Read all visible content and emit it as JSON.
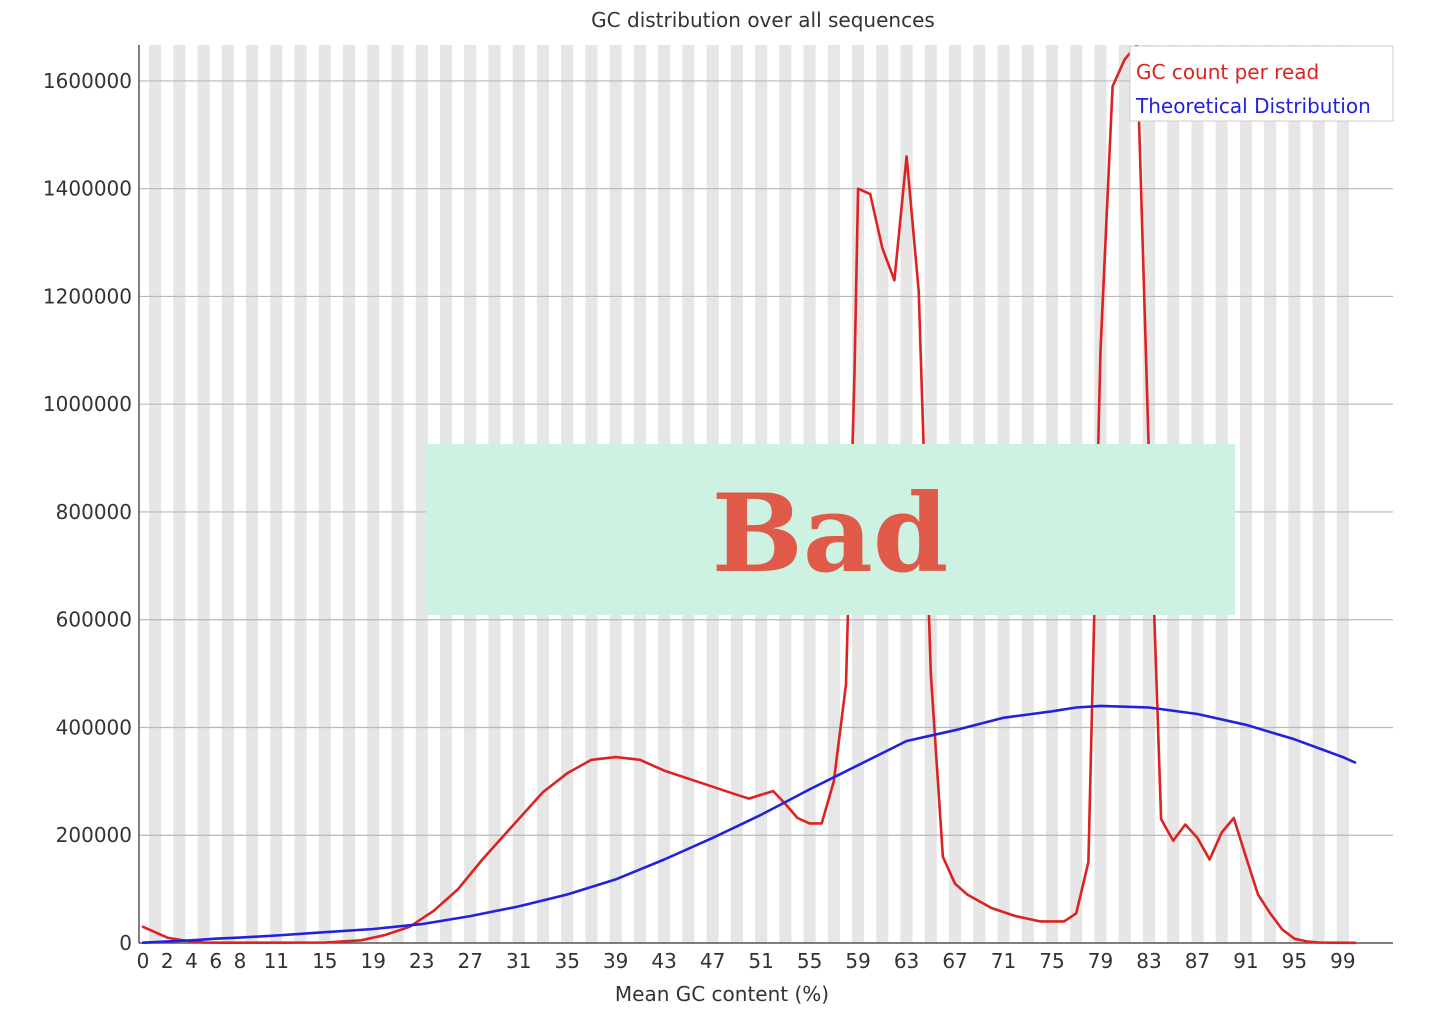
{
  "chart_data": {
    "type": "line",
    "title": "GC distribution over all sequences",
    "xlabel": "Mean GC content (%)",
    "ylabel": "",
    "xlim": [
      0,
      100
    ],
    "ylim": [
      0,
      1666667
    ],
    "yticks": [
      0,
      200000,
      400000,
      600000,
      800000,
      1000000,
      1200000,
      1400000,
      1600000
    ],
    "ytick_labels": [
      "0",
      "200000",
      "400000",
      "600000",
      "800000",
      "1000000",
      "1200000",
      "1400000",
      "1600000"
    ],
    "xticks": [
      0,
      2,
      4,
      6,
      8,
      11,
      15,
      19,
      23,
      27,
      31,
      35,
      39,
      43,
      47,
      51,
      55,
      59,
      63,
      67,
      71,
      75,
      79,
      83,
      87,
      91,
      95,
      99
    ],
    "xtick_labels": [
      "0",
      "2",
      "4",
      "6",
      "8",
      "11",
      "15",
      "19",
      "23",
      "27",
      "31",
      "35",
      "39",
      "43",
      "47",
      "51",
      "55",
      "59",
      "63",
      "67",
      "71",
      "75",
      "79",
      "83",
      "87",
      "91",
      "95",
      "99"
    ],
    "grid": true,
    "legend_position": "top-right",
    "series": [
      {
        "name": "GC count per read",
        "color": "#dd2222",
        "x": [
          0,
          1,
          2,
          3,
          4,
          5,
          7,
          10,
          15,
          18,
          20,
          22,
          24,
          26,
          28,
          30,
          32,
          33,
          35,
          37,
          39,
          41,
          43,
          45,
          47,
          49,
          50,
          51,
          52,
          53,
          54,
          55,
          56,
          57,
          58,
          58.7,
          59,
          60,
          61,
          62,
          63,
          64,
          65,
          66,
          67,
          68,
          70,
          72,
          74,
          76,
          77,
          78,
          79,
          80,
          81,
          82,
          83,
          84,
          84.5,
          85,
          86,
          87,
          88,
          89,
          90,
          91,
          92,
          93,
          94,
          95,
          96,
          97,
          98,
          100
        ],
        "y": [
          30000,
          20000,
          10000,
          6000,
          3000,
          1000,
          500,
          500,
          1000,
          5000,
          15000,
          30000,
          60000,
          100000,
          155000,
          205000,
          255000,
          280000,
          315000,
          340000,
          345000,
          340000,
          320000,
          305000,
          290000,
          275000,
          268000,
          275000,
          282000,
          258000,
          232000,
          222000,
          222000,
          300000,
          480000,
          1050000,
          1400000,
          1390000,
          1290000,
          1230000,
          1460000,
          1210000,
          500000,
          160000,
          110000,
          90000,
          65000,
          50000,
          40000,
          40000,
          55000,
          150000,
          1100000,
          1590000,
          1640000,
          1666667,
          900000,
          230000,
          210000,
          190000,
          220000,
          195000,
          155000,
          205000,
          232000,
          160000,
          90000,
          55000,
          25000,
          8000,
          3000,
          1000,
          500,
          300
        ]
      },
      {
        "name": "Theoretical Distribution",
        "color": "#2222dd",
        "x": [
          0,
          2,
          4,
          6,
          8,
          11,
          15,
          19,
          23,
          27,
          31,
          35,
          39,
          43,
          47,
          51,
          55,
          59,
          63,
          67,
          71,
          75,
          77,
          79,
          83,
          87,
          91,
          95,
          99,
          100
        ],
        "y": [
          500,
          3000,
          5000,
          8000,
          10000,
          14000,
          20000,
          26000,
          35000,
          50000,
          68000,
          90000,
          118000,
          155000,
          195000,
          238000,
          285000,
          330000,
          375000,
          395000,
          418000,
          430000,
          437000,
          440000,
          437000,
          425000,
          405000,
          378000,
          345000,
          335000
        ]
      }
    ]
  },
  "overlay": {
    "label": "Bad",
    "background": "#cdf2e1",
    "text_color": "#e05a4a"
  },
  "plot_style": {
    "band_color": "#e6e6e6",
    "gridline_color": "#b8b8b8",
    "axis_color": "#555555"
  }
}
